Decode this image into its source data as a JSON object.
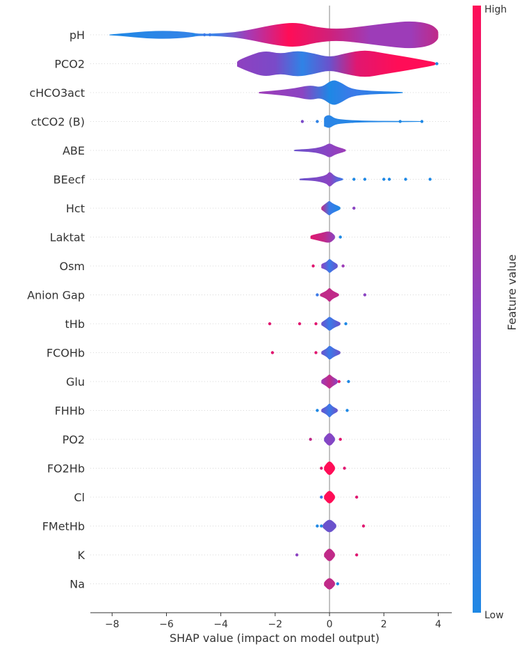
{
  "chart_data": {
    "type": "violin",
    "xlabel": "SHAP value (impact on model output)",
    "xlim": [
      -8.8,
      4.5
    ],
    "xticks": [
      -8,
      -6,
      -4,
      -2,
      0,
      2,
      4
    ],
    "xtick_labels": [
      "−8",
      "−6",
      "−4",
      "−2",
      "0",
      "2",
      "4"
    ],
    "colorbar": {
      "label": "Feature value",
      "high_label": "High",
      "low_label": "Low",
      "high_color": "#ff0d57",
      "low_color": "#1e88e5"
    },
    "features": [
      {
        "name": "pH",
        "range": [
          -8.1,
          4.0
        ],
        "shape": [
          [
            -8.1,
            0.03
          ],
          [
            -7.6,
            0.1
          ],
          [
            -6.8,
            0.25
          ],
          [
            -6.0,
            0.3
          ],
          [
            -5.2,
            0.2
          ],
          [
            -4.8,
            0.06
          ],
          [
            -4.0,
            0.1
          ],
          [
            -3.2,
            0.25
          ],
          [
            -2.0,
            0.75
          ],
          [
            -1.2,
            0.9
          ],
          [
            -0.5,
            0.55
          ],
          [
            0.3,
            0.4
          ],
          [
            1.2,
            0.6
          ],
          [
            2.2,
            0.85
          ],
          [
            3.0,
            1.0
          ],
          [
            3.7,
            0.8
          ],
          [
            4.0,
            0.35
          ]
        ],
        "colors": [
          [
            -8.1,
            "#1e88e5"
          ],
          [
            -4.2,
            "#3b82e8"
          ],
          [
            -3.0,
            "#a43bb6"
          ],
          [
            -1.5,
            "#ff0d57"
          ],
          [
            0.0,
            "#d0207a"
          ],
          [
            1.5,
            "#9d3cb8"
          ],
          [
            3.0,
            "#9d3cb8"
          ],
          [
            4.0,
            "#c02a88"
          ]
        ],
        "outliers": [
          [
            -4.4,
            "#3b7ae8"
          ],
          [
            -4.6,
            "#3b7ae8"
          ],
          [
            -5.0,
            "#1e88e5"
          ]
        ]
      },
      {
        "name": "PCO2",
        "range": [
          -3.4,
          3.9
        ],
        "shape": [
          [
            -3.4,
            0.2
          ],
          [
            -3.0,
            0.55
          ],
          [
            -2.4,
            0.95
          ],
          [
            -1.8,
            0.7
          ],
          [
            -1.2,
            0.95
          ],
          [
            -0.6,
            0.75
          ],
          [
            0.0,
            0.45
          ],
          [
            0.6,
            0.75
          ],
          [
            1.3,
            1.0
          ],
          [
            2.0,
            0.75
          ],
          [
            2.8,
            0.5
          ],
          [
            3.5,
            0.25
          ],
          [
            3.9,
            0.1
          ]
        ],
        "colors": [
          [
            -3.4,
            "#8f40c0"
          ],
          [
            -2.0,
            "#7a4ac8"
          ],
          [
            -1.0,
            "#2f83e6"
          ],
          [
            0.0,
            "#6a52cc"
          ],
          [
            1.0,
            "#e01770"
          ],
          [
            2.5,
            "#ff0d57"
          ],
          [
            3.9,
            "#ff0d57"
          ]
        ],
        "outliers": [
          [
            3.95,
            "#1e88e5"
          ]
        ]
      },
      {
        "name": "cHCO3act",
        "range": [
          -2.6,
          2.7
        ],
        "shape": [
          [
            -2.6,
            0.05
          ],
          [
            -2.0,
            0.15
          ],
          [
            -1.3,
            0.3
          ],
          [
            -0.7,
            0.55
          ],
          [
            -0.3,
            0.35
          ],
          [
            0.1,
            0.95
          ],
          [
            0.4,
            0.75
          ],
          [
            0.8,
            0.25
          ],
          [
            1.5,
            0.12
          ],
          [
            2.2,
            0.08
          ],
          [
            2.7,
            0.04
          ]
        ],
        "colors": [
          [
            -2.6,
            "#9d3cb8"
          ],
          [
            -1.0,
            "#8b44c2"
          ],
          [
            0.0,
            "#1e88e5"
          ],
          [
            0.8,
            "#3b7ae8"
          ],
          [
            2.7,
            "#1e88e5"
          ]
        ],
        "outliers": []
      },
      {
        "name": "ctCO2 (B)",
        "range": [
          -0.2,
          3.4
        ],
        "shape": [
          [
            -0.2,
            0.35
          ],
          [
            0.0,
            0.5
          ],
          [
            0.2,
            0.2
          ],
          [
            0.6,
            0.12
          ],
          [
            1.0,
            0.08
          ],
          [
            1.6,
            0.05
          ],
          [
            2.4,
            0.04
          ],
          [
            3.4,
            0.03
          ]
        ],
        "colors": [
          [
            -0.2,
            "#2a85e6"
          ],
          [
            3.4,
            "#1e88e5"
          ]
        ],
        "outliers": [
          [
            -1.0,
            "#7a4ac8"
          ],
          [
            -0.45,
            "#2f83e6"
          ],
          [
            2.6,
            "#1e88e5"
          ],
          [
            3.4,
            "#1e88e5"
          ]
        ]
      },
      {
        "name": "ABE",
        "range": [
          -1.3,
          0.6
        ],
        "shape": [
          [
            -1.3,
            0.05
          ],
          [
            -0.6,
            0.12
          ],
          [
            -0.2,
            0.3
          ],
          [
            0.0,
            0.55
          ],
          [
            0.2,
            0.3
          ],
          [
            0.6,
            0.08
          ]
        ],
        "colors": [
          [
            -1.3,
            "#6a52cc"
          ],
          [
            0.0,
            "#8b44c2"
          ],
          [
            0.6,
            "#9d3cb8"
          ]
        ],
        "outliers": []
      },
      {
        "name": "BEecf",
        "range": [
          -1.1,
          0.5
        ],
        "shape": [
          [
            -1.1,
            0.06
          ],
          [
            -0.5,
            0.12
          ],
          [
            -0.1,
            0.3
          ],
          [
            0.0,
            0.6
          ],
          [
            0.2,
            0.2
          ],
          [
            0.5,
            0.06
          ]
        ],
        "colors": [
          [
            -1.1,
            "#6a52cc"
          ],
          [
            0.0,
            "#8b44c2"
          ],
          [
            0.5,
            "#3b7ae8"
          ]
        ],
        "outliers": [
          [
            0.9,
            "#1e88e5"
          ],
          [
            1.3,
            "#1e88e5"
          ],
          [
            2.0,
            "#1e88e5"
          ],
          [
            2.2,
            "#1e88e5"
          ],
          [
            2.8,
            "#1e88e5"
          ],
          [
            3.7,
            "#1e88e5"
          ]
        ]
      },
      {
        "name": "Hct",
        "range": [
          -0.3,
          0.4
        ],
        "shape": [
          [
            -0.3,
            0.1
          ],
          [
            -0.1,
            0.4
          ],
          [
            0.0,
            0.55
          ],
          [
            0.1,
            0.35
          ],
          [
            0.4,
            0.1
          ]
        ],
        "colors": [
          [
            -0.3,
            "#c02a88"
          ],
          [
            0.0,
            "#3b7ae8"
          ],
          [
            0.4,
            "#1e88e5"
          ]
        ],
        "outliers": [
          [
            0.9,
            "#8b44c2"
          ]
        ]
      },
      {
        "name": "Laktat",
        "range": [
          -0.7,
          0.2
        ],
        "shape": [
          [
            -0.7,
            0.12
          ],
          [
            -0.3,
            0.3
          ],
          [
            0.0,
            0.45
          ],
          [
            0.2,
            0.12
          ]
        ],
        "colors": [
          [
            -0.7,
            "#e01770"
          ],
          [
            -0.2,
            "#c02a88"
          ],
          [
            0.2,
            "#8b44c2"
          ]
        ],
        "outliers": [
          [
            0.4,
            "#1e88e5"
          ]
        ]
      },
      {
        "name": "Osm",
        "range": [
          -0.3,
          0.3
        ],
        "shape": [
          [
            -0.3,
            0.15
          ],
          [
            -0.1,
            0.3
          ],
          [
            0.0,
            0.55
          ],
          [
            0.1,
            0.35
          ],
          [
            0.3,
            0.12
          ]
        ],
        "colors": [
          [
            -0.3,
            "#8b44c2"
          ],
          [
            0.0,
            "#3b7ae8"
          ],
          [
            0.3,
            "#6a52cc"
          ]
        ],
        "outliers": [
          [
            -0.6,
            "#e01770"
          ],
          [
            0.5,
            "#9d3cb8"
          ]
        ]
      },
      {
        "name": "Anion Gap",
        "range": [
          -0.35,
          0.35
        ],
        "shape": [
          [
            -0.35,
            0.08
          ],
          [
            -0.1,
            0.3
          ],
          [
            0.0,
            0.55
          ],
          [
            0.1,
            0.3
          ],
          [
            0.35,
            0.08
          ]
        ],
        "colors": [
          [
            -0.35,
            "#c02a88"
          ],
          [
            0.0,
            "#c02a88"
          ],
          [
            0.35,
            "#c02a88"
          ]
        ],
        "outliers": [
          [
            -0.45,
            "#3b7ae8"
          ],
          [
            1.3,
            "#8b44c2"
          ]
        ]
      },
      {
        "name": "tHb",
        "range": [
          -0.3,
          0.4
        ],
        "shape": [
          [
            -0.3,
            0.1
          ],
          [
            -0.1,
            0.35
          ],
          [
            0.0,
            0.55
          ],
          [
            0.15,
            0.3
          ],
          [
            0.4,
            0.1
          ]
        ],
        "colors": [
          [
            -0.3,
            "#6a52cc"
          ],
          [
            0.0,
            "#3b7ae8"
          ],
          [
            0.4,
            "#6a52cc"
          ]
        ],
        "outliers": [
          [
            -2.2,
            "#e01770"
          ],
          [
            -1.1,
            "#e01770"
          ],
          [
            -0.5,
            "#e01770"
          ],
          [
            0.6,
            "#1e88e5"
          ]
        ]
      },
      {
        "name": "FCOHb",
        "range": [
          -0.3,
          0.4
        ],
        "shape": [
          [
            -0.3,
            0.1
          ],
          [
            -0.1,
            0.3
          ],
          [
            0.0,
            0.55
          ],
          [
            0.15,
            0.3
          ],
          [
            0.4,
            0.1
          ]
        ],
        "colors": [
          [
            -0.3,
            "#6a52cc"
          ],
          [
            0.0,
            "#3b7ae8"
          ],
          [
            0.4,
            "#6a52cc"
          ]
        ],
        "outliers": [
          [
            -2.1,
            "#e01770"
          ],
          [
            -0.5,
            "#e01770"
          ]
        ]
      },
      {
        "name": "Glu",
        "range": [
          -0.3,
          0.3
        ],
        "shape": [
          [
            -0.3,
            0.12
          ],
          [
            -0.1,
            0.35
          ],
          [
            0.0,
            0.55
          ],
          [
            0.1,
            0.35
          ],
          [
            0.3,
            0.12
          ]
        ],
        "colors": [
          [
            -0.3,
            "#9d3cb8"
          ],
          [
            0.0,
            "#c02a88"
          ],
          [
            0.3,
            "#8b44c2"
          ]
        ],
        "outliers": [
          [
            0.35,
            "#e01770"
          ],
          [
            0.7,
            "#1e88e5"
          ]
        ]
      },
      {
        "name": "FHHb",
        "range": [
          -0.3,
          0.3
        ],
        "shape": [
          [
            -0.3,
            0.1
          ],
          [
            -0.1,
            0.3
          ],
          [
            0.0,
            0.55
          ],
          [
            0.1,
            0.3
          ],
          [
            0.3,
            0.1
          ]
        ],
        "colors": [
          [
            -0.3,
            "#6a52cc"
          ],
          [
            0.0,
            "#3b7ae8"
          ],
          [
            0.3,
            "#6a52cc"
          ]
        ],
        "outliers": [
          [
            -0.45,
            "#1e88e5"
          ],
          [
            0.65,
            "#1e88e5"
          ]
        ]
      },
      {
        "name": "PO2",
        "range": [
          -0.2,
          0.2
        ],
        "shape": [
          [
            -0.2,
            0.12
          ],
          [
            0.0,
            0.55
          ],
          [
            0.2,
            0.12
          ]
        ],
        "colors": [
          [
            -0.2,
            "#7a4ac8"
          ],
          [
            0.0,
            "#8b44c2"
          ],
          [
            0.2,
            "#7a4ac8"
          ]
        ],
        "outliers": [
          [
            -0.7,
            "#c02a88"
          ],
          [
            0.4,
            "#e01770"
          ]
        ]
      },
      {
        "name": "FO2Hb",
        "range": [
          -0.2,
          0.2
        ],
        "shape": [
          [
            -0.2,
            0.12
          ],
          [
            0.0,
            0.6
          ],
          [
            0.2,
            0.12
          ]
        ],
        "colors": [
          [
            -0.2,
            "#ff0d57"
          ],
          [
            0.2,
            "#ff0d57"
          ]
        ],
        "outliers": [
          [
            -0.3,
            "#e01770"
          ],
          [
            0.55,
            "#e01770"
          ]
        ]
      },
      {
        "name": "Cl",
        "range": [
          -0.2,
          0.2
        ],
        "shape": [
          [
            -0.2,
            0.12
          ],
          [
            0.0,
            0.55
          ],
          [
            0.2,
            0.12
          ]
        ],
        "colors": [
          [
            -0.2,
            "#ff0d57"
          ],
          [
            0.2,
            "#ff0d57"
          ]
        ],
        "outliers": [
          [
            -0.3,
            "#3b7ae8"
          ],
          [
            1.0,
            "#e01770"
          ]
        ]
      },
      {
        "name": "FMetHb",
        "range": [
          -0.25,
          0.25
        ],
        "shape": [
          [
            -0.25,
            0.12
          ],
          [
            0.0,
            0.55
          ],
          [
            0.25,
            0.12
          ]
        ],
        "colors": [
          [
            -0.25,
            "#6a52cc"
          ],
          [
            0.25,
            "#6a52cc"
          ]
        ],
        "outliers": [
          [
            -0.45,
            "#1e88e5"
          ],
          [
            -0.3,
            "#1e88e5"
          ],
          [
            1.25,
            "#e01770"
          ]
        ]
      },
      {
        "name": "K",
        "range": [
          -0.2,
          0.2
        ],
        "shape": [
          [
            -0.2,
            0.12
          ],
          [
            0.0,
            0.55
          ],
          [
            0.2,
            0.12
          ]
        ],
        "colors": [
          [
            -0.2,
            "#c02a88"
          ],
          [
            0.2,
            "#c02a88"
          ]
        ],
        "outliers": [
          [
            -1.2,
            "#8b44c2"
          ],
          [
            1.0,
            "#e01770"
          ]
        ]
      },
      {
        "name": "Na",
        "range": [
          -0.2,
          0.2
        ],
        "shape": [
          [
            -0.2,
            0.12
          ],
          [
            0.0,
            0.5
          ],
          [
            0.2,
            0.12
          ]
        ],
        "colors": [
          [
            -0.2,
            "#c02a88"
          ],
          [
            0.2,
            "#c02a88"
          ]
        ],
        "outliers": [
          [
            0.3,
            "#1e88e5"
          ]
        ]
      }
    ]
  }
}
